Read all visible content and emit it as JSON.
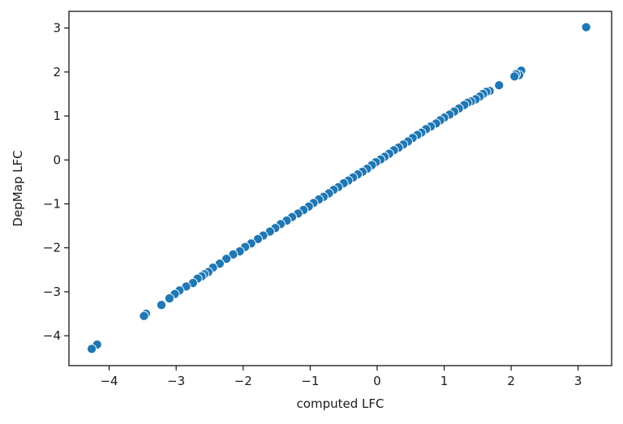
{
  "chart_data": {
    "type": "scatter",
    "title": "",
    "xlabel": "computed LFC",
    "ylabel": "DepMap LFC",
    "xlim": [
      -4.6,
      3.5
    ],
    "ylim": [
      -4.68,
      3.38
    ],
    "xticks": [
      -4,
      -3,
      -2,
      -1,
      0,
      1,
      2,
      3
    ],
    "yticks": [
      -4,
      -3,
      -2,
      -1,
      0,
      1,
      2,
      3
    ],
    "xtick_labels": [
      "−4",
      "−3",
      "−2",
      "−1",
      "0",
      "1",
      "2",
      "3"
    ],
    "ytick_labels": [
      "−4",
      "−3",
      "−2",
      "−1",
      "0",
      "1",
      "2",
      "3"
    ],
    "grid": false,
    "legend": "none",
    "point_color": "#1f77b4",
    "point_edge_color": "#ffffff",
    "series": [
      {
        "x": [
          3.12,
          2.15,
          2.12,
          2.07,
          2.05,
          1.82,
          1.68,
          1.63,
          1.58,
          1.53,
          1.47,
          1.4,
          1.35,
          1.3,
          1.22,
          1.15,
          1.08,
          1.0,
          0.94,
          0.88,
          0.8,
          0.73,
          0.66,
          0.6,
          0.53,
          0.46,
          0.39,
          0.32,
          0.25,
          0.18,
          0.11,
          0.05,
          -0.02,
          -0.08,
          -0.15,
          -0.22,
          -0.29,
          -0.36,
          -0.43,
          -0.5,
          -0.58,
          -0.65,
          -0.72,
          -0.8,
          -0.87,
          -0.95,
          -1.02,
          -1.1,
          -1.18,
          -1.27,
          -1.35,
          -1.44,
          -1.52,
          -1.6,
          -1.7,
          -1.78,
          -1.88,
          -1.97,
          -2.05,
          -2.15,
          -2.25,
          -2.35,
          -2.45,
          -2.52,
          -2.58,
          -2.62,
          -2.68,
          -2.75,
          -2.85,
          -2.95,
          -3.02,
          -3.1,
          -3.22,
          -3.45,
          -3.48,
          -4.18,
          -4.26
        ],
        "y": [
          3.02,
          2.03,
          1.93,
          1.95,
          1.9,
          1.7,
          1.57,
          1.55,
          1.5,
          1.44,
          1.38,
          1.33,
          1.3,
          1.25,
          1.17,
          1.1,
          1.03,
          0.96,
          0.9,
          0.83,
          0.76,
          0.7,
          0.62,
          0.57,
          0.5,
          0.42,
          0.35,
          0.28,
          0.22,
          0.14,
          0.07,
          0.01,
          -0.05,
          -0.12,
          -0.2,
          -0.27,
          -0.33,
          -0.4,
          -0.47,
          -0.53,
          -0.62,
          -0.68,
          -0.76,
          -0.84,
          -0.9,
          -0.98,
          -1.06,
          -1.14,
          -1.22,
          -1.3,
          -1.38,
          -1.46,
          -1.55,
          -1.63,
          -1.72,
          -1.8,
          -1.9,
          -1.98,
          -2.08,
          -2.15,
          -2.25,
          -2.36,
          -2.45,
          -2.55,
          -2.6,
          -2.65,
          -2.7,
          -2.8,
          -2.88,
          -2.97,
          -3.05,
          -3.15,
          -3.3,
          -3.5,
          -3.55,
          -4.2,
          -4.3
        ]
      }
    ]
  }
}
